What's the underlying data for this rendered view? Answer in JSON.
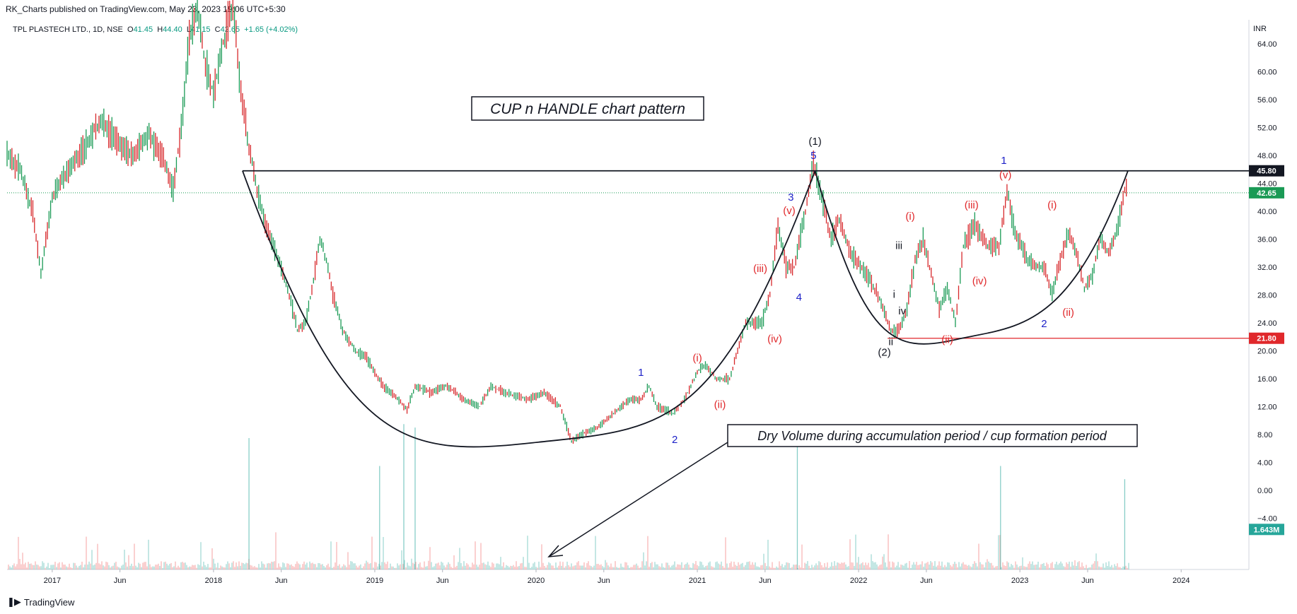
{
  "header": {
    "published": "RK_Charts published on TradingView.com, May 23, 2023 19:06 UTC+5:30",
    "symbol": "TPL PLASTECH LTD., 1D, NSE",
    "ohlc": {
      "open_label": "O",
      "open": "41.45",
      "high_label": "H",
      "high": "44.40",
      "low_label": "L",
      "low": "41.15",
      "close_label": "C",
      "close": "42.65",
      "change": "+1.65 (+4.02%)"
    }
  },
  "footer": {
    "brand": "TradingView"
  },
  "chart_data": {
    "type": "line",
    "currency": "INR",
    "y_ticks": [
      "64.00",
      "60.00",
      "56.00",
      "52.00",
      "48.00",
      "44.00",
      "40.00",
      "36.00",
      "32.00",
      "28.00",
      "24.00",
      "20.00",
      "16.00",
      "12.00",
      "8.00",
      "4.00",
      "0.00",
      "−4.00"
    ],
    "ylim": [
      -7,
      68
    ],
    "x_ticks": [
      {
        "t": 2017.0,
        "label": "2017"
      },
      {
        "t": 2017.42,
        "label": "Jun"
      },
      {
        "t": 2018.0,
        "label": "2018"
      },
      {
        "t": 2018.42,
        "label": "Jun"
      },
      {
        "t": 2019.0,
        "label": "2019"
      },
      {
        "t": 2019.42,
        "label": "Jun"
      },
      {
        "t": 2020.0,
        "label": "2020"
      },
      {
        "t": 2020.42,
        "label": "Jun"
      },
      {
        "t": 2021.0,
        "label": "2021"
      },
      {
        "t": 2021.42,
        "label": "Jun"
      },
      {
        "t": 2022.0,
        "label": "2022"
      },
      {
        "t": 2022.42,
        "label": "Jun"
      },
      {
        "t": 2023.0,
        "label": "2023"
      },
      {
        "t": 2023.42,
        "label": "Jun"
      },
      {
        "t": 2024.0,
        "label": "2024"
      }
    ],
    "xlim": [
      2016.72,
      2024.42
    ],
    "price_series": {
      "name": "",
      "points": [
        [
          2016.72,
          48
        ],
        [
          2016.8,
          46
        ],
        [
          2016.88,
          40
        ],
        [
          2016.93,
          31
        ],
        [
          2017.0,
          42
        ],
        [
          2017.1,
          46
        ],
        [
          2017.2,
          49
        ],
        [
          2017.3,
          53
        ],
        [
          2017.4,
          50
        ],
        [
          2017.5,
          48
        ],
        [
          2017.6,
          51
        ],
        [
          2017.7,
          47
        ],
        [
          2017.75,
          43
        ],
        [
          2017.8,
          52
        ],
        [
          2017.85,
          65
        ],
        [
          2017.9,
          69
        ],
        [
          2017.95,
          61
        ],
        [
          2018.0,
          57
        ],
        [
          2018.05,
          63
        ],
        [
          2018.12,
          70
        ],
        [
          2018.17,
          57
        ],
        [
          2018.22,
          49
        ],
        [
          2018.27,
          43
        ],
        [
          2018.32,
          38
        ],
        [
          2018.37,
          35
        ],
        [
          2018.42,
          32
        ],
        [
          2018.47,
          28
        ],
        [
          2018.52,
          23
        ],
        [
          2018.57,
          24
        ],
        [
          2018.62,
          30
        ],
        [
          2018.66,
          36
        ],
        [
          2018.7,
          33
        ],
        [
          2018.74,
          28
        ],
        [
          2018.8,
          23
        ],
        [
          2018.88,
          20
        ],
        [
          2018.95,
          19
        ],
        [
          2019.05,
          15
        ],
        [
          2019.15,
          13
        ],
        [
          2019.2,
          11.5
        ],
        [
          2019.25,
          15
        ],
        [
          2019.35,
          14
        ],
        [
          2019.45,
          15
        ],
        [
          2019.55,
          13
        ],
        [
          2019.65,
          12
        ],
        [
          2019.72,
          15
        ],
        [
          2019.8,
          14
        ],
        [
          2019.95,
          13
        ],
        [
          2020.05,
          14
        ],
        [
          2020.15,
          12
        ],
        [
          2020.22,
          7
        ],
        [
          2020.28,
          8
        ],
        [
          2020.38,
          9
        ],
        [
          2020.48,
          11
        ],
        [
          2020.58,
          13
        ],
        [
          2020.65,
          13
        ],
        [
          2020.7,
          15
        ],
        [
          2020.75,
          12
        ],
        [
          2020.85,
          11
        ],
        [
          2020.92,
          13
        ],
        [
          2021.0,
          17
        ],
        [
          2021.05,
          18
        ],
        [
          2021.12,
          16
        ],
        [
          2021.2,
          16
        ],
        [
          2021.25,
          20
        ],
        [
          2021.3,
          24
        ],
        [
          2021.4,
          24
        ],
        [
          2021.45,
          28
        ],
        [
          2021.5,
          38
        ],
        [
          2021.55,
          32
        ],
        [
          2021.6,
          32
        ],
        [
          2021.67,
          40
        ],
        [
          2021.72,
          47
        ],
        [
          2021.78,
          41
        ],
        [
          2021.83,
          36
        ],
        [
          2021.88,
          39
        ],
        [
          2021.95,
          34
        ],
        [
          2022.05,
          31
        ],
        [
          2022.12,
          28
        ],
        [
          2022.2,
          23
        ],
        [
          2022.25,
          23
        ],
        [
          2022.3,
          26
        ],
        [
          2022.35,
          33
        ],
        [
          2022.4,
          36
        ],
        [
          2022.45,
          31
        ],
        [
          2022.5,
          26
        ],
        [
          2022.55,
          29
        ],
        [
          2022.6,
          24
        ],
        [
          2022.65,
          35
        ],
        [
          2022.72,
          38
        ],
        [
          2022.8,
          35
        ],
        [
          2022.87,
          35
        ],
        [
          2022.92,
          43
        ],
        [
          2022.97,
          37
        ],
        [
          2023.05,
          33
        ],
        [
          2023.1,
          32
        ],
        [
          2023.15,
          32
        ],
        [
          2023.2,
          28
        ],
        [
          2023.25,
          33
        ],
        [
          2023.3,
          37
        ],
        [
          2023.35,
          34
        ],
        [
          2023.4,
          29
        ],
        [
          2023.45,
          31
        ],
        [
          2023.5,
          36
        ],
        [
          2023.55,
          34
        ],
        [
          2023.6,
          37
        ],
        [
          2023.65,
          43
        ],
        [
          2023.67,
          44.4
        ]
      ]
    },
    "volume_spikes": [
      [
        2018.22,
        7.5
      ],
      [
        2019.03,
        3.5
      ],
      [
        2019.18,
        9.5
      ],
      [
        2019.25,
        9.0
      ],
      [
        2021.62,
        8.0
      ],
      [
        2022.88,
        3.5
      ],
      [
        2023.65,
        1.6
      ]
    ],
    "volume_label": "1.643M",
    "resistance": {
      "value": 45.8,
      "label": "45.80"
    },
    "support": {
      "value": 21.8,
      "label": "21.80"
    },
    "last_price": {
      "value": 42.65,
      "label": "42.65"
    },
    "cup": {
      "t_start": 2018.18,
      "t_bottom": 2019.97,
      "t_end": 2021.73,
      "y_rim": 45.8,
      "y_bottom": 7
    },
    "handle_cup": {
      "t_start": 2021.73,
      "t_bottom": 2022.6,
      "t_end": 2023.67,
      "y_rim": 45.8,
      "y_bottom": 21.8
    },
    "annotations": [
      {
        "text": "(1)",
        "t": 2021.73,
        "y": 49.5,
        "color": "#131722"
      },
      {
        "text": "5",
        "t": 2021.72,
        "y": 47.5,
        "color": "#1e22c8"
      },
      {
        "text": "3",
        "t": 2021.58,
        "y": 41.5,
        "color": "#1e22c8"
      },
      {
        "text": "(v)",
        "t": 2021.57,
        "y": 39.6,
        "color": "#e0282b"
      },
      {
        "text": "(iii)",
        "t": 2021.39,
        "y": 31.3,
        "color": "#e0282b"
      },
      {
        "text": "4",
        "t": 2021.63,
        "y": 27.2,
        "color": "#1e22c8"
      },
      {
        "text": "(iv)",
        "t": 2021.48,
        "y": 21.2,
        "color": "#e0282b"
      },
      {
        "text": "(i)",
        "t": 2021.0,
        "y": 18.5,
        "color": "#e0282b"
      },
      {
        "text": "(ii)",
        "t": 2021.14,
        "y": 11.8,
        "color": "#e0282b"
      },
      {
        "text": "1",
        "t": 2020.65,
        "y": 16.4,
        "color": "#1e22c8"
      },
      {
        "text": "2",
        "t": 2020.86,
        "y": 6.8,
        "color": "#1e22c8"
      },
      {
        "text": "(2)",
        "t": 2022.16,
        "y": 19.3,
        "color": "#131722"
      },
      {
        "text": "ii",
        "t": 2022.2,
        "y": 20.8,
        "color": "#131722"
      },
      {
        "text": "i",
        "t": 2022.22,
        "y": 27.6,
        "color": "#131722"
      },
      {
        "text": "iv",
        "t": 2022.27,
        "y": 25.2,
        "color": "#131722"
      },
      {
        "text": "iii",
        "t": 2022.25,
        "y": 34.6,
        "color": "#131722"
      },
      {
        "text": "(i)",
        "t": 2022.32,
        "y": 38.8,
        "color": "#e0282b"
      },
      {
        "text": "(ii)",
        "t": 2022.55,
        "y": 21.1,
        "color": "#e0282b"
      },
      {
        "text": "(iii)",
        "t": 2022.7,
        "y": 40.4,
        "color": "#e0282b"
      },
      {
        "text": "(iv)",
        "t": 2022.75,
        "y": 29.5,
        "color": "#e0282b"
      },
      {
        "text": "(v)",
        "t": 2022.91,
        "y": 44.7,
        "color": "#e0282b"
      },
      {
        "text": "1",
        "t": 2022.9,
        "y": 46.8,
        "color": "#1e22c8"
      },
      {
        "text": "(i)",
        "t": 2023.2,
        "y": 40.4,
        "color": "#e0282b"
      },
      {
        "text": "2",
        "t": 2023.15,
        "y": 23.4,
        "color": "#1e22c8"
      },
      {
        "text": "(ii)",
        "t": 2023.3,
        "y": 25.0,
        "color": "#e0282b"
      }
    ],
    "callouts": {
      "title": "CUP n HANDLE chart pattern",
      "volume_note": "Dry Volume during accumulation period / cup formation period"
    }
  }
}
